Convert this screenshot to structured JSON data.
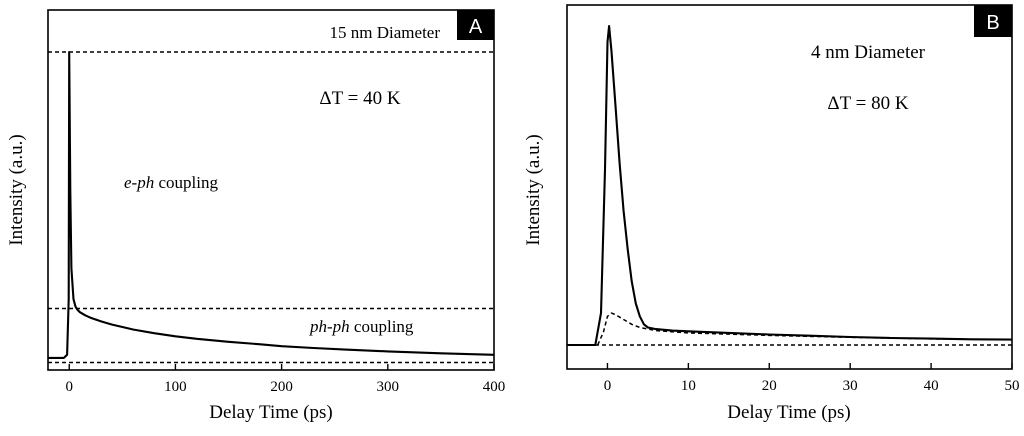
{
  "figure": {
    "panels": [
      {
        "label": "A",
        "annotations": {
          "diameter": "15 nm Diameter",
          "delta_t": "ΔT = 40 K",
          "eph_italic": "e-ph",
          "eph_rest": " coupling",
          "phph_italic": "ph-ph",
          "phph_rest": " coupling"
        }
      },
      {
        "label": "B",
        "annotations": {
          "diameter": "4 nm Diameter",
          "delta_t": "ΔT = 80 K"
        }
      }
    ]
  },
  "chart_data": [
    {
      "type": "line",
      "panel": "A",
      "title": "15 nm Diameter",
      "xlabel": "Delay Time (ps)",
      "ylabel": "Intensity (a.u.)",
      "xlim": [
        -20,
        400
      ],
      "ylim": [
        0,
        1.07
      ],
      "xticks": [
        0,
        100,
        200,
        300,
        400
      ],
      "x_tick_labels": [
        "0",
        "100",
        "200",
        "300",
        "400"
      ],
      "grid": false,
      "reference_lines": [
        {
          "name": "peak-level",
          "y": 1.0,
          "style": "dashed"
        },
        {
          "name": "ph-ph-level",
          "y": 0.17,
          "style": "dashed"
        },
        {
          "name": "baseline",
          "y": -0.005,
          "style": "dashed"
        }
      ],
      "series": [
        {
          "name": "signal",
          "style": "solid",
          "x": [
            -20,
            -5,
            -2,
            -0.5,
            0,
            1,
            2,
            4,
            6,
            8,
            10,
            15,
            20,
            30,
            40,
            60,
            80,
            100,
            120,
            150,
            180,
            200,
            230,
            260,
            300,
            350,
            400
          ],
          "y": [
            0.01,
            0.01,
            0.02,
            0.2,
            1.0,
            0.55,
            0.3,
            0.2,
            0.175,
            0.165,
            0.158,
            0.148,
            0.14,
            0.128,
            0.118,
            0.102,
            0.09,
            0.08,
            0.072,
            0.062,
            0.054,
            0.048,
            0.042,
            0.037,
            0.031,
            0.025,
            0.02
          ]
        }
      ]
    },
    {
      "type": "line",
      "panel": "B",
      "title": "4 nm Diameter",
      "xlabel": "Delay Time (ps)",
      "ylabel": "Intensity (a.u.)",
      "xlim": [
        -5,
        50
      ],
      "ylim": [
        0,
        1.1
      ],
      "xticks": [
        0,
        10,
        20,
        30,
        40,
        50
      ],
      "x_tick_labels": [
        "0",
        "10",
        "20",
        "30",
        "40",
        "50"
      ],
      "grid": false,
      "reference_lines": [
        {
          "name": "baseline",
          "y": 0.0,
          "style": "dashed"
        }
      ],
      "series": [
        {
          "name": "signal",
          "style": "solid",
          "x": [
            -5,
            -1.5,
            -0.8,
            -0.3,
            0,
            0.2,
            0.5,
            1,
            1.5,
            2,
            2.5,
            3,
            3.5,
            4,
            4.5,
            5,
            6,
            8,
            10,
            15,
            20,
            25,
            30,
            35,
            40,
            45,
            50
          ],
          "y": [
            0.0,
            0.0,
            0.1,
            0.55,
            0.95,
            1.0,
            0.92,
            0.75,
            0.57,
            0.42,
            0.3,
            0.2,
            0.13,
            0.09,
            0.065,
            0.055,
            0.05,
            0.045,
            0.043,
            0.038,
            0.033,
            0.029,
            0.025,
            0.022,
            0.02,
            0.018,
            0.017
          ]
        },
        {
          "name": "component",
          "style": "dashed",
          "x": [
            -1.2,
            -0.5,
            0,
            0.5,
            1,
            2,
            3,
            4,
            6,
            10,
            20,
            30,
            40,
            50
          ],
          "y": [
            0.0,
            0.04,
            0.09,
            0.1,
            0.095,
            0.08,
            0.065,
            0.055,
            0.045,
            0.038,
            0.03,
            0.024,
            0.019,
            0.017
          ]
        }
      ]
    }
  ]
}
